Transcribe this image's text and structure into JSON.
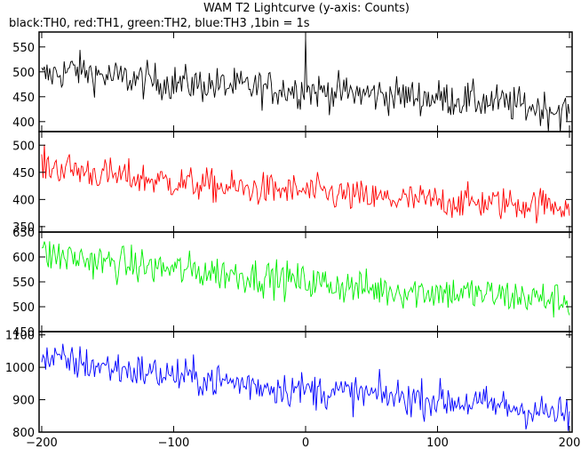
{
  "title": "WAM T2 Lightcurve (y-axis: Counts)",
  "subtitle": "black:TH0, red:TH1, green:TH2, blue:TH3 ,1bin = 1s",
  "chart_data": [
    {
      "type": "line",
      "name": "TH0",
      "color": "#000000",
      "xlim": [
        -202,
        202
      ],
      "ylim": [
        380,
        580
      ],
      "yticks": [
        400,
        450,
        500,
        550
      ],
      "ytick_labels": [
        "400",
        "450",
        "500",
        "550"
      ],
      "level_anchors": [
        [
          -200,
          490
        ],
        [
          -175,
          505
        ],
        [
          -150,
          490
        ],
        [
          -100,
          478
        ],
        [
          -50,
          470
        ],
        [
          0,
          463
        ],
        [
          50,
          455
        ],
        [
          100,
          448
        ],
        [
          150,
          437
        ],
        [
          200,
          420
        ]
      ],
      "noise": 26,
      "spikes": [
        [
          0,
          570
        ]
      ]
    },
    {
      "type": "line",
      "name": "TH1",
      "color": "#ff0000",
      "xlim": [
        -202,
        202
      ],
      "ylim": [
        340,
        525
      ],
      "yticks": [
        350,
        400,
        450,
        500
      ],
      "ytick_labels": [
        "350",
        "400",
        "450",
        "500"
      ],
      "level_anchors": [
        [
          -200,
          462
        ],
        [
          -175,
          455
        ],
        [
          -150,
          445
        ],
        [
          -100,
          432
        ],
        [
          -50,
          420
        ],
        [
          0,
          415
        ],
        [
          50,
          402
        ],
        [
          100,
          397
        ],
        [
          150,
          393
        ],
        [
          200,
          390
        ]
      ],
      "noise": 22,
      "spikes": []
    },
    {
      "type": "line",
      "name": "TH2",
      "color": "#00ee00",
      "xlim": [
        -202,
        202
      ],
      "ylim": [
        450,
        650
      ],
      "yticks": [
        450,
        500,
        550,
        600,
        650
      ],
      "ytick_labels": [
        "450",
        "500",
        "550",
        "600",
        "650"
      ],
      "level_anchors": [
        [
          -200,
          605
        ],
        [
          -175,
          598
        ],
        [
          -150,
          588
        ],
        [
          -100,
          575
        ],
        [
          -50,
          565
        ],
        [
          0,
          550
        ],
        [
          20,
          545
        ],
        [
          50,
          535
        ],
        [
          100,
          530
        ],
        [
          150,
          522
        ],
        [
          200,
          512
        ]
      ],
      "noise": 26,
      "spikes": []
    },
    {
      "type": "line",
      "name": "TH3",
      "color": "#0000ff",
      "xlim": [
        -202,
        202
      ],
      "ylim": [
        800,
        1110
      ],
      "yticks": [
        800,
        900,
        1000,
        1100
      ],
      "ytick_labels": [
        "800",
        "900",
        "1000",
        "1100"
      ],
      "level_anchors": [
        [
          -200,
          1025
        ],
        [
          -175,
          1015
        ],
        [
          -150,
          1000
        ],
        [
          -100,
          975
        ],
        [
          -50,
          950
        ],
        [
          0,
          930
        ],
        [
          50,
          915
        ],
        [
          100,
          900
        ],
        [
          150,
          880
        ],
        [
          200,
          850
        ]
      ],
      "noise": 40,
      "spikes": []
    }
  ],
  "xticks": [
    -200,
    -100,
    0,
    100,
    200
  ],
  "xtick_labels": [
    "−200",
    "−100",
    "0",
    "100",
    "200"
  ]
}
